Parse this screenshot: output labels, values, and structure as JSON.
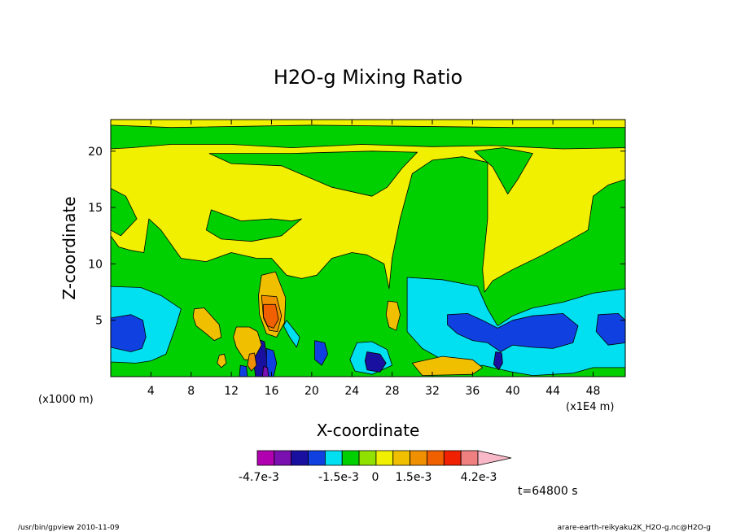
{
  "chart_data": {
    "type": "heatmap",
    "title": "H2O-g Mixing Ratio",
    "xlabel": "X-coordinate",
    "ylabel": "Z-coordinate",
    "x_unit_note": "(x1000 m)",
    "x_scale_note": "(x1E4 m)",
    "x_ticks": [
      4,
      8,
      12,
      16,
      20,
      24,
      28,
      32,
      36,
      40,
      44,
      48
    ],
    "y_ticks": [
      5,
      10,
      15,
      20
    ],
    "xlim": [
      0,
      51.2
    ],
    "ylim": [
      0,
      22.8
    ],
    "colorbar": {
      "colors": [
        "#b000b0",
        "#7a10b0",
        "#1a10a0",
        "#1040e0",
        "#00e0f0",
        "#00d000",
        "#90e000",
        "#f0f000",
        "#f0c000",
        "#f09000",
        "#f06000",
        "#f02000",
        "#f08080",
        "#f8b8c8"
      ],
      "labels": [
        "-4.7e-3",
        "-1.5e-3",
        "0",
        "1.5e-3",
        "4.2e-3"
      ]
    },
    "regions": [
      {
        "level": "green",
        "color": "#00d000",
        "polygon": [
          [
            0,
            0
          ],
          [
            51.2,
            0
          ],
          [
            51.2,
            22.8
          ],
          [
            0,
            22.8
          ]
        ]
      },
      {
        "level": "yellow",
        "color": "#f0f000",
        "polygon": [
          [
            0,
            22.8
          ],
          [
            51.2,
            22.8
          ],
          [
            51.2,
            22.1
          ],
          [
            40,
            22.1
          ],
          [
            20,
            22.3
          ],
          [
            6,
            22.1
          ],
          [
            0,
            22.3
          ]
        ]
      },
      {
        "level": "yellow",
        "color": "#f0f000",
        "polygon": [
          [
            0,
            20.2
          ],
          [
            2,
            20.3
          ],
          [
            6,
            20.6
          ],
          [
            12,
            20.6
          ],
          [
            18,
            20.3
          ],
          [
            25,
            20.6
          ],
          [
            32,
            20.4
          ],
          [
            38,
            20.5
          ],
          [
            45,
            20.2
          ],
          [
            51.2,
            20.3
          ],
          [
            51.2,
            17.5
          ],
          [
            49.5,
            17
          ],
          [
            48,
            16
          ],
          [
            47.5,
            13
          ],
          [
            45.5,
            12
          ],
          [
            43,
            10.8
          ],
          [
            40,
            9.5
          ],
          [
            38,
            8.5
          ],
          [
            37.2,
            7.5
          ],
          [
            37,
            9.5
          ],
          [
            37.5,
            14
          ],
          [
            37.5,
            19
          ],
          [
            35,
            19.5
          ],
          [
            32,
            19.2
          ],
          [
            30,
            18
          ],
          [
            28.8,
            14
          ],
          [
            28,
            10.5
          ],
          [
            27.7,
            7.8
          ],
          [
            27.2,
            10
          ],
          [
            25.5,
            10.8
          ],
          [
            24,
            11
          ],
          [
            22,
            10.5
          ],
          [
            20.5,
            9
          ],
          [
            19,
            8.7
          ],
          [
            17.5,
            9
          ],
          [
            16,
            10.5
          ],
          [
            14.5,
            10.5
          ],
          [
            12,
            11
          ],
          [
            9.5,
            10.2
          ],
          [
            7,
            10.5
          ],
          [
            5,
            13
          ],
          [
            3.8,
            14
          ],
          [
            3.3,
            11
          ],
          [
            2,
            11.2
          ],
          [
            0.8,
            11.5
          ],
          [
            0,
            12.5
          ]
        ]
      },
      {
        "level": "green",
        "color": "#00d000",
        "polygon": [
          [
            9.8,
            19.8
          ],
          [
            12,
            18.9
          ],
          [
            17,
            18.7
          ],
          [
            22,
            16.8
          ],
          [
            26,
            16
          ],
          [
            27.5,
            16.8
          ],
          [
            29,
            18.5
          ],
          [
            30.5,
            19.9
          ],
          [
            26,
            20
          ],
          [
            18,
            19.8
          ]
        ]
      },
      {
        "level": "green",
        "color": "#00d000",
        "polygon": [
          [
            10,
            14.8
          ],
          [
            13,
            13.8
          ],
          [
            16,
            14
          ],
          [
            18,
            13.8
          ],
          [
            19,
            14
          ],
          [
            17,
            12.5
          ],
          [
            14,
            12
          ],
          [
            11,
            12.2
          ],
          [
            9.5,
            13
          ]
        ]
      },
      {
        "level": "green",
        "color": "#00d000",
        "polygon": [
          [
            0,
            16.7
          ],
          [
            1.5,
            16
          ],
          [
            2.6,
            14
          ],
          [
            1,
            12.5
          ],
          [
            0,
            13
          ]
        ]
      },
      {
        "level": "green",
        "color": "#00d000",
        "polygon": [
          [
            36.2,
            20
          ],
          [
            38,
            18.6
          ],
          [
            39.5,
            16.2
          ],
          [
            40.5,
            17.5
          ],
          [
            42,
            19.8
          ],
          [
            39,
            20.3
          ]
        ]
      },
      {
        "level": "cyan",
        "color": "#00e0f0",
        "polygon": [
          [
            0,
            8
          ],
          [
            3,
            7.9
          ],
          [
            5,
            7.2
          ],
          [
            7,
            6
          ],
          [
            6.5,
            4.5
          ],
          [
            5.5,
            2
          ],
          [
            4,
            1.4
          ],
          [
            2.5,
            1.2
          ],
          [
            0,
            1.3
          ]
        ]
      },
      {
        "level": "cyan",
        "color": "#00e0f0",
        "polygon": [
          [
            29.5,
            8.8
          ],
          [
            33,
            8.6
          ],
          [
            36.5,
            8
          ],
          [
            37.5,
            6
          ],
          [
            38.5,
            4.5
          ],
          [
            40,
            5.4
          ],
          [
            42,
            6.1
          ],
          [
            45,
            6.6
          ],
          [
            48,
            7.4
          ],
          [
            51.2,
            7.8
          ],
          [
            51.2,
            0.8
          ],
          [
            48,
            0.8
          ],
          [
            46,
            0.3
          ],
          [
            42,
            0.1
          ],
          [
            40,
            0.4
          ],
          [
            37,
            1
          ],
          [
            35,
            0.8
          ],
          [
            33,
            1.5
          ],
          [
            31,
            2.5
          ],
          [
            29.5,
            4
          ]
        ]
      },
      {
        "level": "cyan",
        "color": "#00e0f0",
        "polygon": [
          [
            17.5,
            5
          ],
          [
            18.2,
            4.2
          ],
          [
            18.8,
            3.5
          ],
          [
            18.5,
            2.6
          ],
          [
            17.8,
            3.5
          ],
          [
            17.2,
            4.5
          ]
        ]
      },
      {
        "level": "cyan",
        "color": "#00e0f0",
        "polygon": [
          [
            24.5,
            3
          ],
          [
            26,
            3.1
          ],
          [
            27.5,
            2.4
          ],
          [
            28,
            1
          ],
          [
            26,
            0.2
          ],
          [
            24.3,
            0.5
          ],
          [
            23.8,
            1.5
          ]
        ]
      },
      {
        "level": "blue",
        "color": "#1040e0",
        "polygon": [
          [
            0,
            5.2
          ],
          [
            2,
            5.5
          ],
          [
            3.2,
            5
          ],
          [
            3.5,
            3.5
          ],
          [
            3.1,
            2.5
          ],
          [
            2,
            2.2
          ],
          [
            0,
            2.6
          ]
        ]
      },
      {
        "level": "blue",
        "color": "#1040e0",
        "polygon": [
          [
            33.5,
            5.5
          ],
          [
            35.5,
            5.6
          ],
          [
            37,
            5
          ],
          [
            38.5,
            4.3
          ],
          [
            40,
            5
          ],
          [
            42,
            5.4
          ],
          [
            45,
            5.6
          ],
          [
            46.5,
            4.5
          ],
          [
            46,
            3
          ],
          [
            44,
            2.5
          ],
          [
            42,
            2.6
          ],
          [
            40,
            2.8
          ],
          [
            38.8,
            2.2
          ],
          [
            37.5,
            3
          ],
          [
            36,
            3.2
          ],
          [
            34.5,
            3.8
          ],
          [
            33.5,
            4.6
          ]
        ]
      },
      {
        "level": "blue",
        "color": "#1040e0",
        "polygon": [
          [
            48.5,
            5.5
          ],
          [
            50.5,
            5.6
          ],
          [
            51.2,
            5
          ],
          [
            51.2,
            3
          ],
          [
            49.5,
            2.8
          ],
          [
            48.3,
            4
          ]
        ]
      },
      {
        "level": "blue",
        "color": "#1040e0",
        "polygon": [
          [
            20.3,
            3.2
          ],
          [
            21.3,
            3
          ],
          [
            21.6,
            2
          ],
          [
            21,
            1
          ],
          [
            20.3,
            1.5
          ]
        ]
      },
      {
        "level": "navy",
        "color": "#1a10a0",
        "polygon": [
          [
            25.5,
            2.2
          ],
          [
            26.8,
            2
          ],
          [
            27.4,
            1.2
          ],
          [
            26.8,
            0.4
          ],
          [
            25.5,
            0.6
          ],
          [
            25.3,
            1.4
          ]
        ]
      },
      {
        "level": "navy",
        "color": "#1a10a0",
        "polygon": [
          [
            38.3,
            2.2
          ],
          [
            38.9,
            2.1
          ],
          [
            39,
            1.2
          ],
          [
            38.6,
            0.6
          ],
          [
            38.1,
            1.1
          ]
        ]
      },
      {
        "level": "navy",
        "color": "#1a10a0",
        "polygon": [
          [
            14.7,
            3.3
          ],
          [
            15.3,
            3.1
          ],
          [
            15.5,
            1.8
          ],
          [
            15.6,
            0
          ],
          [
            14.4,
            0
          ],
          [
            14.2,
            1.5
          ]
        ]
      },
      {
        "level": "blue",
        "color": "#1040e0",
        "polygon": [
          [
            15.5,
            2.5
          ],
          [
            16.2,
            2.3
          ],
          [
            16.5,
            1.2
          ],
          [
            16.2,
            0
          ],
          [
            15.5,
            0
          ]
        ]
      },
      {
        "level": "light-yellow",
        "color": "#f0c000",
        "polygon": [
          [
            8.3,
            6
          ],
          [
            9.3,
            6.1
          ],
          [
            10.8,
            4.6
          ],
          [
            11,
            3.5
          ],
          [
            10.3,
            3.2
          ],
          [
            9.5,
            3.8
          ],
          [
            8.5,
            4.5
          ],
          [
            8.2,
            5.3
          ]
        ]
      },
      {
        "level": "light-yellow",
        "color": "#f0c000",
        "polygon": [
          [
            12.5,
            4.4
          ],
          [
            13.8,
            4.4
          ],
          [
            14.6,
            4
          ],
          [
            15,
            2.8
          ],
          [
            14.2,
            1.5
          ],
          [
            13.3,
            1.5
          ],
          [
            12.5,
            2.6
          ],
          [
            12.2,
            3.5
          ]
        ]
      },
      {
        "level": "light-yellow",
        "color": "#f0c000",
        "polygon": [
          [
            10.8,
            1.9
          ],
          [
            11.3,
            2
          ],
          [
            11.5,
            1.2
          ],
          [
            11,
            0.8
          ],
          [
            10.6,
            1.2
          ]
        ]
      },
      {
        "level": "light-yellow",
        "color": "#f0c000",
        "polygon": [
          [
            27.6,
            6.7
          ],
          [
            28.5,
            6.6
          ],
          [
            28.8,
            5.5
          ],
          [
            28.4,
            4.1
          ],
          [
            27.7,
            4.4
          ],
          [
            27.4,
            5.5
          ]
        ]
      },
      {
        "level": "light-yellow",
        "color": "#f0c000",
        "polygon": [
          [
            30,
            1.2
          ],
          [
            33,
            1.8
          ],
          [
            36,
            1.5
          ],
          [
            37,
            0.8
          ],
          [
            36,
            0.2
          ],
          [
            31,
            0.1
          ]
        ]
      },
      {
        "level": "light-yellow",
        "color": "#f0c000",
        "polygon": [
          [
            15,
            9
          ],
          [
            16.4,
            9.3
          ],
          [
            17.4,
            7
          ],
          [
            17.3,
            4.8
          ],
          [
            16.5,
            3.5
          ],
          [
            15.5,
            3.8
          ],
          [
            14.8,
            5.5
          ],
          [
            14.7,
            7.2
          ]
        ]
      },
      {
        "level": "orange",
        "color": "#f09000",
        "polygon": [
          [
            15,
            7.2
          ],
          [
            16.5,
            7.1
          ],
          [
            17,
            5.4
          ],
          [
            16.6,
            4
          ],
          [
            15.8,
            4.1
          ],
          [
            15.2,
            5.2
          ]
        ]
      },
      {
        "level": "red-orange",
        "color": "#f06000",
        "polygon": [
          [
            15.2,
            6.4
          ],
          [
            16.4,
            6.4
          ],
          [
            16.7,
            5.1
          ],
          [
            16.2,
            4.3
          ],
          [
            15.6,
            4.5
          ],
          [
            15.2,
            5.3
          ]
        ]
      },
      {
        "level": "orange",
        "color": "#f09000",
        "polygon": [
          [
            13.8,
            2
          ],
          [
            14.3,
            2.1
          ],
          [
            14.5,
            1
          ],
          [
            14,
            0.5
          ],
          [
            13.6,
            1
          ]
        ]
      },
      {
        "level": "purple",
        "color": "#7a10b0",
        "polygon": [
          [
            15.2,
            0.9
          ],
          [
            15.6,
            0.8
          ],
          [
            15.7,
            0
          ],
          [
            15.1,
            0
          ]
        ]
      },
      {
        "level": "blue",
        "color": "#1040e0",
        "polygon": [
          [
            12.9,
            1
          ],
          [
            13.5,
            0.9
          ],
          [
            13.6,
            0
          ],
          [
            12.8,
            0
          ]
        ]
      }
    ]
  },
  "meta": {
    "time_label": "t=64800 s",
    "footer_left": "/usr/bin/gpview  2010-11-09",
    "footer_right": "arare-earth-reikyaku2K_H2O-g.nc@H2O-g"
  }
}
